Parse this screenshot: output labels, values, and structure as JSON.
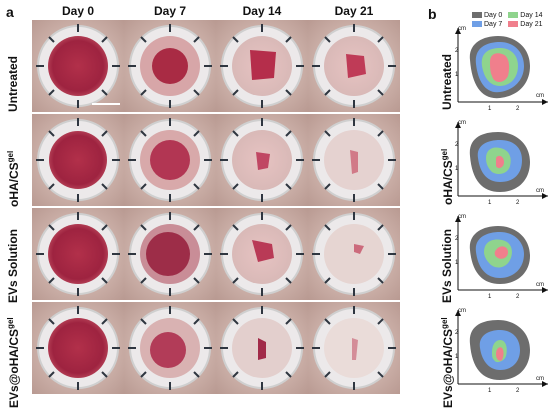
{
  "panel_a": {
    "letter": "a",
    "columns": [
      "Day 0",
      "Day 7",
      "Day 14",
      "Day 21"
    ],
    "rows": [
      {
        "main": "Untreated",
        "sup": ""
      },
      {
        "main": "oHA/CS",
        "sup": "gel"
      },
      {
        "main": "EVs Solution",
        "sup": ""
      },
      {
        "main": "EVs@oHA/CS",
        "sup": "gel"
      }
    ]
  },
  "panel_b": {
    "letter": "b",
    "legend": [
      "Day 0",
      "Day 14",
      "Day 7",
      "Day 21"
    ],
    "axis_unit": "cm",
    "x_ticks": [
      "1",
      "2"
    ],
    "y_ticks": [
      "1",
      "2"
    ],
    "rows": [
      {
        "main": "Untreated",
        "sup": ""
      },
      {
        "main": "oHA/CS",
        "sup": "gel"
      },
      {
        "main": "EVs Solution",
        "sup": ""
      },
      {
        "main": "EVs@oHA/CS",
        "sup": "gel"
      }
    ]
  },
  "colors": {
    "day0": "#6d6d6d",
    "day7": "#6f9fe6",
    "day14": "#8fd48d",
    "day21": "#f07f8c"
  }
}
